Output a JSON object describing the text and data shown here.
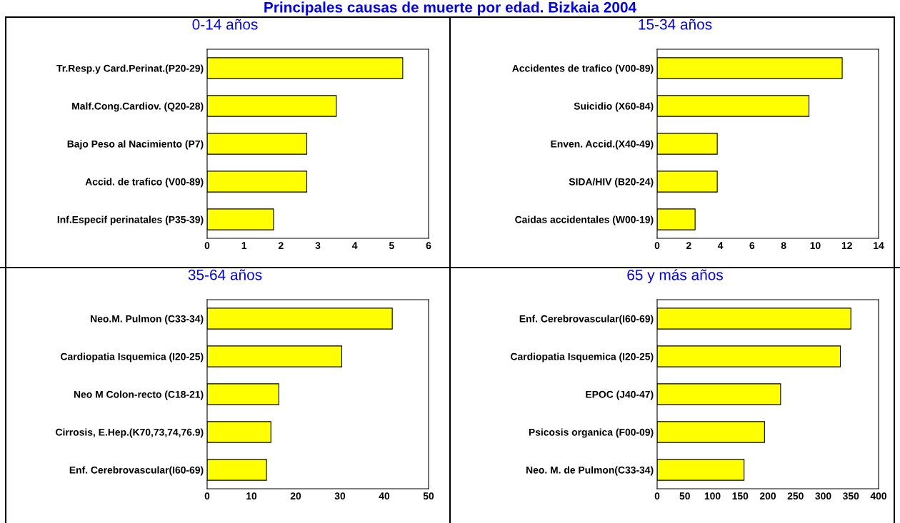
{
  "chart_data": [
    {
      "type": "bar",
      "orientation": "horizontal",
      "title": "0-14 años",
      "annotations": [
        "Principales causas de muerte por edad. Bizkaia 2004"
      ],
      "categories": [
        "Tr.Resp.y Card.Perinat.(P20-29)",
        "Malf.Cong.Cardiov. (Q20-28)",
        "Bajo Peso al Nacimiento (P7)",
        "Accid. de trafico (V00-89)",
        "Inf.Especif perinatales (P35-39)"
      ],
      "values": [
        5.3,
        3.5,
        2.7,
        2.7,
        1.8
      ],
      "color": "#ffff00",
      "xlim": [
        0,
        6
      ],
      "xticks": [
        0,
        1,
        2,
        3,
        4,
        5,
        6
      ],
      "grid": false,
      "legend": false
    },
    {
      "type": "bar",
      "orientation": "horizontal",
      "title": "15-34 años",
      "categories": [
        "Accidentes de trafico (V00-89)",
        "Suicidio (X60-84)",
        "Enven. Accid.(X40-49)",
        "SIDA/HIV (B20-24)",
        "Caidas accidentales (W00-19)"
      ],
      "values": [
        11.7,
        9.6,
        3.8,
        3.8,
        2.4
      ],
      "color": "#ffff00",
      "xlim": [
        0,
        14
      ],
      "xticks": [
        0,
        2,
        4,
        6,
        8,
        10,
        12,
        14
      ],
      "grid": false,
      "legend": false
    },
    {
      "type": "bar",
      "orientation": "horizontal",
      "title": "35-64 años",
      "categories": [
        "Neo.M. Pulmon (C33-34)",
        "Cardiopatia Isquemica (I20-25)",
        "Neo M Colon-recto (C18-21)",
        "Cirrosis, E.Hep.(K70,73,74,76.9)",
        "Enf. Cerebrovascular(I60-69)"
      ],
      "values": [
        41.8,
        30.4,
        16.2,
        14.4,
        13.4
      ],
      "color": "#ffff00",
      "xlim": [
        0,
        50
      ],
      "xticks": [
        0,
        10,
        20,
        30,
        40,
        50
      ],
      "grid": false,
      "legend": false
    },
    {
      "type": "bar",
      "orientation": "horizontal",
      "title": "65 y más años",
      "categories": [
        "Enf. Cerebrovascular(I60-69)",
        "Cardiopatia Isquemica (I20-25)",
        "EPOC (J40-47)",
        "Psicosis organica (F00-09)",
        "Neo. M. de Pulmon(C33-34)"
      ],
      "values": [
        350,
        331,
        223,
        194,
        157
      ],
      "color": "#ffff00",
      "xlim": [
        0,
        400
      ],
      "xticks": [
        0,
        50,
        100,
        150,
        200,
        250,
        300,
        350,
        400
      ],
      "grid": false,
      "legend": false
    }
  ]
}
